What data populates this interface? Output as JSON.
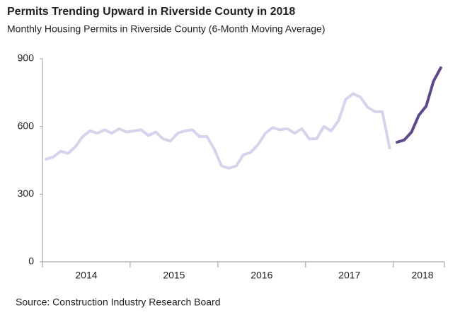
{
  "chart_data": {
    "type": "line",
    "title": "Permits Trending Upward in Riverside County in 2018",
    "subtitle": "Monthly Housing Permits in Riverside County (6-Month Moving Average)",
    "source": "Source: Construction Industry Research Board",
    "categories": [
      null,
      null,
      null,
      null,
      null,
      null,
      "2014",
      null,
      null,
      null,
      null,
      null,
      null,
      null,
      null,
      null,
      null,
      null,
      "2015",
      null,
      null,
      null,
      null,
      null,
      null,
      null,
      null,
      null,
      null,
      null,
      "2016",
      null,
      null,
      null,
      null,
      null,
      null,
      null,
      null,
      null,
      null,
      null,
      "2017",
      null,
      null,
      null,
      null,
      null,
      null,
      null,
      null,
      null,
      "2018",
      null,
      null
    ],
    "series": [
      {
        "color": "#d9d2ec",
        "values": [
          455,
          465,
          490,
          480,
          510,
          555,
          580,
          570,
          585,
          570,
          590,
          575,
          580,
          585,
          560,
          575,
          545,
          535,
          570,
          580,
          585,
          555,
          555,
          500,
          425,
          415,
          425,
          475,
          485,
          520,
          570,
          595,
          585,
          590,
          570,
          590,
          545,
          545,
          600,
          580,
          625,
          720,
          745,
          730,
          685,
          665,
          665,
          505,
          null,
          null,
          null,
          null,
          null,
          null,
          null
        ]
      },
      {
        "color": "#5e4a8b",
        "values": [
          null,
          null,
          null,
          null,
          null,
          null,
          null,
          null,
          null,
          null,
          null,
          null,
          null,
          null,
          null,
          null,
          null,
          null,
          null,
          null,
          null,
          null,
          null,
          null,
          null,
          null,
          null,
          null,
          null,
          null,
          null,
          null,
          null,
          null,
          null,
          null,
          null,
          null,
          null,
          null,
          null,
          null,
          null,
          null,
          null,
          null,
          null,
          null,
          530,
          540,
          575,
          650,
          690,
          800,
          860
        ]
      }
    ],
    "ylim": [
      0,
      900
    ],
    "yticks": [
      0,
      300,
      600,
      900
    ]
  }
}
